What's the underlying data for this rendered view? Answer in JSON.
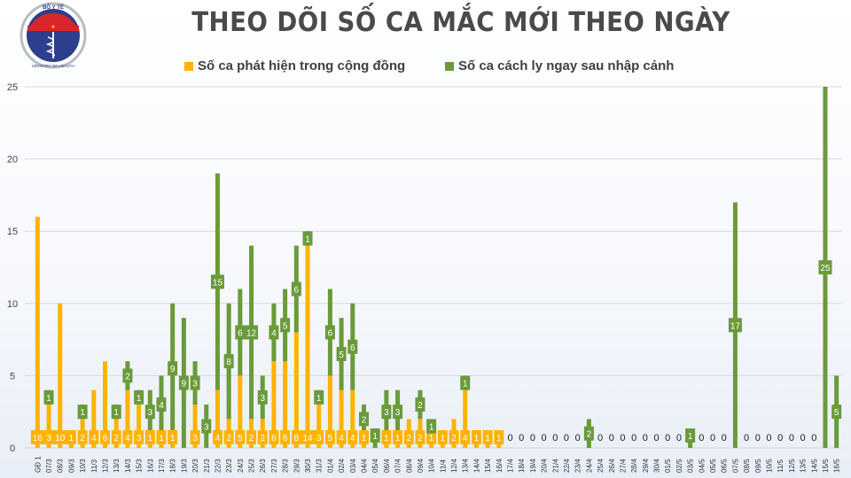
{
  "title": "THEO DÕI SỐ CA MẮC MỚI THEO NGÀY",
  "logo": {
    "top_text": "BỘ Y TẾ",
    "bottom_text": "MINISTRY OF HEALTH"
  },
  "legend": [
    {
      "label": "Số ca phát hiện trong cộng đồng",
      "color": "#FFB300"
    },
    {
      "label": "Số ca cách ly ngay sau nhập cảnh",
      "color": "#6A9A3A"
    }
  ],
  "chart_data": {
    "type": "bar",
    "stacked": true,
    "title": "THEO DÕI SỐ CA MẮC MỚI THEO NGÀY",
    "xlabel": "",
    "ylabel": "",
    "ylim": [
      0,
      25
    ],
    "yticks": [
      0,
      5,
      10,
      15,
      20,
      25
    ],
    "grid": true,
    "legend_position": "top",
    "categories": [
      "GĐ 1",
      "07/3",
      "08/3",
      "09/3",
      "10/3",
      "11/3",
      "12/3",
      "13/3",
      "14/3",
      "15/3",
      "16/3",
      "17/3",
      "18/3",
      "19/3",
      "20/3",
      "21/3",
      "22/3",
      "23/3",
      "24/3",
      "25/3",
      "26/3",
      "27/3",
      "28/3",
      "29/3",
      "30/3",
      "31/3",
      "01/4",
      "02/4",
      "03/4",
      "04/4",
      "05/4",
      "06/4",
      "07/4",
      "08/4",
      "09/4",
      "10/4",
      "11/4",
      "12/4",
      "13/4",
      "14/4",
      "15/4",
      "16/4",
      "17/4",
      "18/4",
      "19/4",
      "20/4",
      "21/4",
      "22/4",
      "23/4",
      "24/4",
      "25/4",
      "26/4",
      "27/4",
      "28/4",
      "29/4",
      "30/4",
      "01/5",
      "02/5",
      "03/5",
      "04/5",
      "05/5",
      "06/5",
      "07/5",
      "08/5",
      "09/5",
      "10/5",
      "11/5",
      "12/5",
      "13/5",
      "14/5",
      "15/5",
      "16/5"
    ],
    "series": [
      {
        "name": "Số ca phát hiện trong cộng đồng",
        "color": "#FFB300",
        "values": [
          16,
          3,
          10,
          1,
          2,
          4,
          6,
          2,
          4,
          3,
          1,
          1,
          1,
          0,
          3,
          0,
          4,
          2,
          5,
          2,
          2,
          6,
          6,
          8,
          14,
          3,
          5,
          4,
          4,
          1,
          0,
          1,
          1,
          2,
          2,
          1,
          1,
          2,
          4,
          1,
          1,
          1,
          0,
          0,
          0,
          0,
          0,
          0,
          0,
          0,
          0,
          0,
          0,
          0,
          0,
          0,
          0,
          0,
          0,
          0,
          0,
          0,
          0,
          0,
          0,
          0,
          0,
          0,
          0,
          0,
          0,
          0
        ]
      },
      {
        "name": "Số ca cách ly ngay sau nhập cảnh",
        "color": "#6A9A3A",
        "values": [
          0,
          1,
          0,
          0,
          1,
          0,
          0,
          1,
          2,
          1,
          3,
          4,
          9,
          9,
          3,
          3,
          15,
          8,
          6,
          12,
          3,
          4,
          5,
          6,
          1,
          1,
          6,
          5,
          6,
          2,
          1,
          3,
          3,
          0,
          2,
          1,
          0,
          0,
          1,
          0,
          0,
          0,
          0,
          0,
          0,
          0,
          0,
          0,
          0,
          2,
          0,
          0,
          0,
          0,
          0,
          0,
          0,
          0,
          1,
          0,
          0,
          0,
          17,
          0,
          0,
          0,
          0,
          0,
          0,
          0,
          25,
          5
        ]
      }
    ]
  }
}
